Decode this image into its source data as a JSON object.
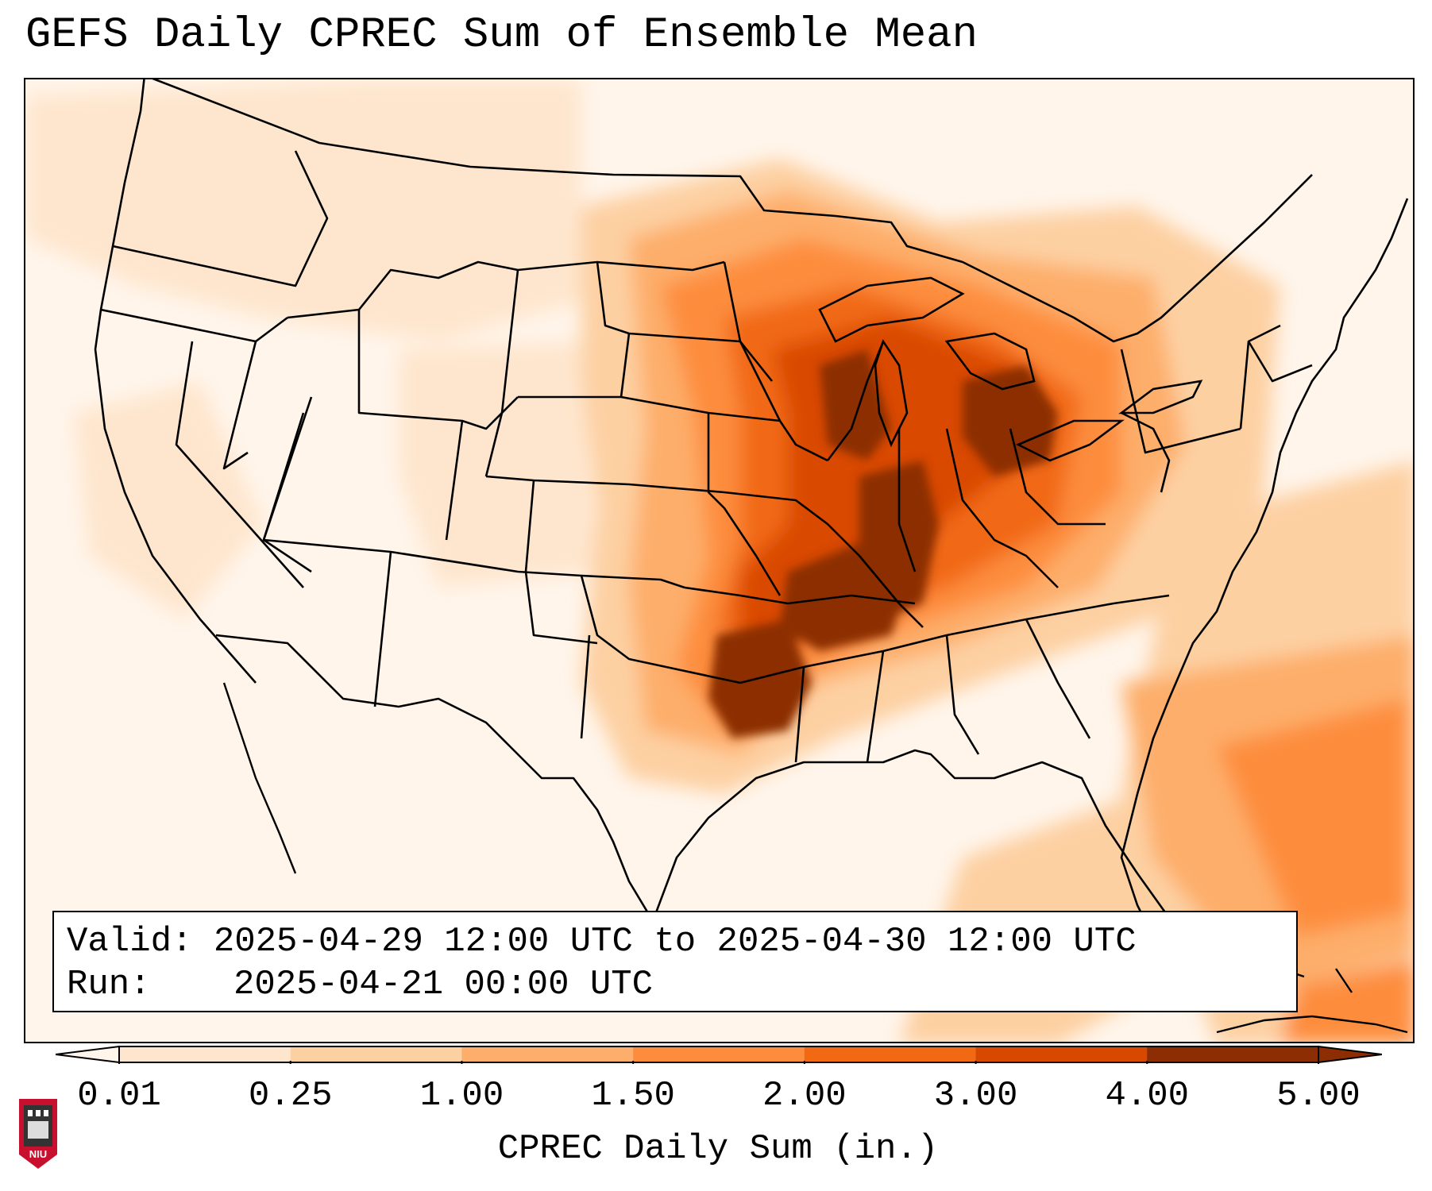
{
  "title": "GEFS Daily CPREC Sum of Ensemble Mean",
  "info": {
    "valid_label": "Valid:",
    "valid_value": "2025-04-29 12:00 UTC to 2025-04-30 12:00 UTC",
    "run_label": "Run:",
    "run_value": "2025-04-21 00:00 UTC"
  },
  "colorbar": {
    "label": "CPREC Daily Sum (in.)",
    "ticks": [
      "0.01",
      "0.25",
      "1.00",
      "1.50",
      "2.00",
      "3.00",
      "4.00",
      "5.00"
    ],
    "colors": [
      "#fff5eb",
      "#fee6ce",
      "#fdd0a2",
      "#fdae6b",
      "#fd8d3c",
      "#f16913",
      "#d94801",
      "#8c2d04"
    ]
  },
  "map": {
    "projection": "Lambert conformal, continental United States",
    "basemap_features": [
      "state borders",
      "country borders",
      "coastlines",
      "Great Lakes"
    ],
    "heaviest_precip_states": [
      "Iowa",
      "Illinois",
      "Missouri",
      "Oklahoma",
      "Wisconsin",
      "Michigan"
    ]
  },
  "logo": {
    "label": "NIU",
    "colors": {
      "shield": "#c8102e",
      "tower": "#333333"
    }
  }
}
